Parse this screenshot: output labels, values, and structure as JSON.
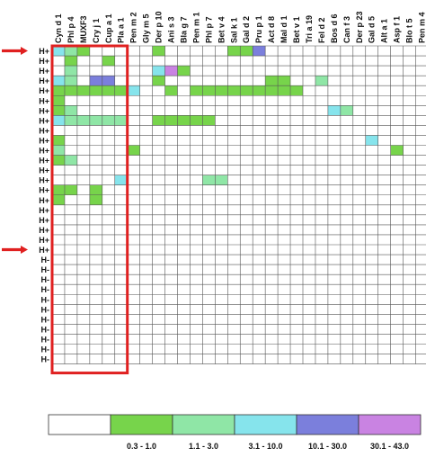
{
  "chart_data": {
    "type": "heatmap",
    "columns": [
      "Cyn d 1",
      "Phl p 4",
      "MUXF3",
      "Cry j 1",
      "Cup a 1",
      "Pla a 1",
      "Pen m 2",
      "Gly m 5",
      "Der p 10",
      "Ani s 3",
      "Bla g 7",
      "Pen m 1",
      "Phl p 7",
      "Bet v 4",
      "Sal k 1",
      "Gal d 2",
      "Pru p 1",
      "Act d 8",
      "Mal d 1",
      "Bet v 1",
      "Tri a 19",
      "Fel d 2",
      "Bos d 6",
      "Can f 3",
      "Der p 23",
      "Gal d 5",
      "Alt a 1",
      "Asp f 1",
      "Blo t 5",
      "Pen m 4"
    ],
    "rows": [
      "H+",
      "H+",
      "H+",
      "H+",
      "H+",
      "H+",
      "H+",
      "H+",
      "H+",
      "H+",
      "H+",
      "H+",
      "H+",
      "H+",
      "H+",
      "H+",
      "H+",
      "H+",
      "H+",
      "H+",
      "H+",
      "H-",
      "H-",
      "H-",
      "H-",
      "H-",
      "H-",
      "H-",
      "H-",
      "H-",
      "H-",
      "H-"
    ],
    "color_bins": [
      {
        "label": "",
        "color": "#ffffff"
      },
      {
        "label": "0.3 - 1.0",
        "color": "#77d44b"
      },
      {
        "label": "1.1 - 3.0",
        "color": "#8fe6a6"
      },
      {
        "label": "3.1 - 10.0",
        "color": "#86e4ec"
      },
      {
        "label": "10.1 - 30.0",
        "color": "#7b7fdc"
      },
      {
        "label": "30.1 - 43.0",
        "color": "#c983e2"
      }
    ],
    "cells": [
      [
        0,
        0,
        3
      ],
      [
        0,
        1,
        2
      ],
      [
        0,
        2,
        1
      ],
      [
        0,
        8,
        1
      ],
      [
        0,
        14,
        1
      ],
      [
        0,
        15,
        1
      ],
      [
        0,
        16,
        4
      ],
      [
        1,
        1,
        1
      ],
      [
        1,
        4,
        1
      ],
      [
        2,
        1,
        2
      ],
      [
        2,
        8,
        3
      ],
      [
        2,
        9,
        5
      ],
      [
        2,
        10,
        1
      ],
      [
        3,
        0,
        3
      ],
      [
        3,
        1,
        2
      ],
      [
        3,
        3,
        4
      ],
      [
        3,
        4,
        4
      ],
      [
        3,
        8,
        1
      ],
      [
        3,
        17,
        1
      ],
      [
        3,
        18,
        1
      ],
      [
        3,
        21,
        2
      ],
      [
        4,
        0,
        1
      ],
      [
        4,
        1,
        1
      ],
      [
        4,
        2,
        1
      ],
      [
        4,
        3,
        1
      ],
      [
        4,
        4,
        1
      ],
      [
        4,
        5,
        1
      ],
      [
        4,
        6,
        3
      ],
      [
        4,
        9,
        1
      ],
      [
        4,
        11,
        1
      ],
      [
        4,
        12,
        1
      ],
      [
        4,
        13,
        1
      ],
      [
        4,
        14,
        1
      ],
      [
        4,
        15,
        1
      ],
      [
        4,
        16,
        1
      ],
      [
        4,
        17,
        1
      ],
      [
        4,
        18,
        1
      ],
      [
        4,
        19,
        1
      ],
      [
        5,
        0,
        1
      ],
      [
        6,
        0,
        1
      ],
      [
        6,
        1,
        2
      ],
      [
        6,
        22,
        3
      ],
      [
        6,
        23,
        2
      ],
      [
        7,
        0,
        3
      ],
      [
        7,
        1,
        2
      ],
      [
        7,
        2,
        2
      ],
      [
        7,
        3,
        2
      ],
      [
        7,
        4,
        2
      ],
      [
        7,
        5,
        2
      ],
      [
        7,
        8,
        1
      ],
      [
        7,
        9,
        1
      ],
      [
        7,
        10,
        1
      ],
      [
        7,
        11,
        1
      ],
      [
        7,
        12,
        1
      ],
      [
        9,
        0,
        1
      ],
      [
        9,
        25,
        3
      ],
      [
        10,
        0,
        2
      ],
      [
        10,
        6,
        1
      ],
      [
        10,
        27,
        1
      ],
      [
        11,
        0,
        1
      ],
      [
        11,
        1,
        2
      ],
      [
        13,
        5,
        3
      ],
      [
        13,
        12,
        2
      ],
      [
        13,
        13,
        2
      ],
      [
        14,
        0,
        1
      ],
      [
        14,
        1,
        1
      ],
      [
        14,
        3,
        1
      ],
      [
        15,
        0,
        1
      ],
      [
        15,
        3,
        1
      ]
    ],
    "highlight_box": {
      "col_start": 0,
      "col_end": 5
    },
    "arrow_rows": [
      0,
      20
    ],
    "legend_position": "bottom"
  }
}
